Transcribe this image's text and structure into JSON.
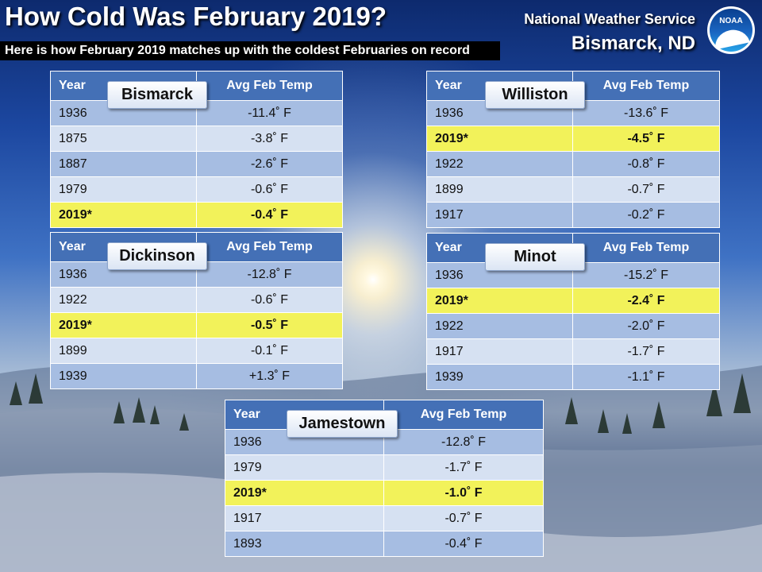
{
  "title": "How Cold Was February 2019?",
  "subtitle": "Here is how February 2019 matches up with the coldest Februaries on record",
  "org": {
    "agency": "National Weather Service",
    "office": "Bismarck, ND",
    "logo_text": "NOAA"
  },
  "headers": {
    "year": "Year",
    "temp": "Avg Feb Temp"
  },
  "stations": [
    {
      "name": "Bismarck",
      "rows": [
        {
          "year": "1936",
          "temp": "-11.4˚ F"
        },
        {
          "year": "1875",
          "temp": "-3.8˚ F"
        },
        {
          "year": "1887",
          "temp": "-2.6˚ F"
        },
        {
          "year": "1979",
          "temp": "-0.6˚ F"
        },
        {
          "year": "2019*",
          "temp": "-0.4˚ F",
          "highlight": true
        }
      ]
    },
    {
      "name": "Williston",
      "rows": [
        {
          "year": "1936",
          "temp": "-13.6˚ F"
        },
        {
          "year": "2019*",
          "temp": "-4.5˚ F",
          "highlight": true
        },
        {
          "year": "1922",
          "temp": "-0.8˚ F"
        },
        {
          "year": "1899",
          "temp": "-0.7˚ F"
        },
        {
          "year": "1917",
          "temp": "-0.2˚ F"
        }
      ]
    },
    {
      "name": "Dickinson",
      "rows": [
        {
          "year": "1936",
          "temp": "-12.8˚ F"
        },
        {
          "year": "1922",
          "temp": "-0.6˚ F"
        },
        {
          "year": "2019*",
          "temp": "-0.5˚ F",
          "highlight": true
        },
        {
          "year": "1899",
          "temp": "-0.1˚ F"
        },
        {
          "year": "1939",
          "temp": "+1.3˚ F"
        }
      ]
    },
    {
      "name": "Minot",
      "rows": [
        {
          "year": "1936",
          "temp": "-15.2˚ F"
        },
        {
          "year": "2019*",
          "temp": "-2.4˚ F",
          "highlight": true
        },
        {
          "year": "1922",
          "temp": "-2.0˚ F"
        },
        {
          "year": "1917",
          "temp": "-1.7˚ F"
        },
        {
          "year": "1939",
          "temp": "-1.1˚ F"
        }
      ]
    },
    {
      "name": "Jamestown",
      "rows": [
        {
          "year": "1936",
          "temp": "-12.8˚ F"
        },
        {
          "year": "1979",
          "temp": "-1.7˚ F"
        },
        {
          "year": "2019*",
          "temp": "-1.0˚ F",
          "highlight": true
        },
        {
          "year": "1917",
          "temp": "-0.7˚ F"
        },
        {
          "year": "1893",
          "temp": "-0.4˚ F"
        }
      ]
    }
  ]
}
